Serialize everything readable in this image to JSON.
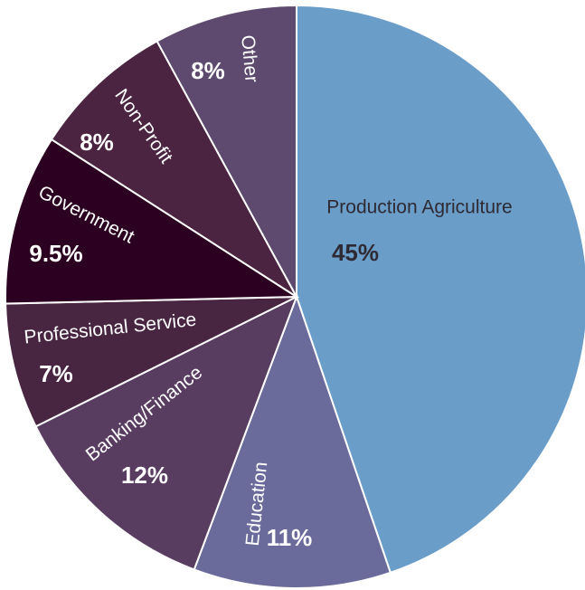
{
  "chart_data": {
    "type": "pie",
    "title": "",
    "slices": [
      {
        "label": "Production Agriculture",
        "value_label": "45%",
        "value": 45,
        "color": "#6b9dc9",
        "label_color": "#2e2a34"
      },
      {
        "label": "Education",
        "value_label": "11%",
        "value": 11,
        "color": "#6a6b9b",
        "label_color": "#ffffff"
      },
      {
        "label": "Banking/Finance",
        "value_label": "12%",
        "value": 12,
        "color": "#593d61",
        "label_color": "#ffffff"
      },
      {
        "label": "Professional Service",
        "value_label": "7%",
        "value": 7,
        "color": "#482541",
        "label_color": "#ffffff"
      },
      {
        "label": "Government",
        "value_label": "9.5%",
        "value": 9.5,
        "color": "#2b0020",
        "label_color": "#ffffff"
      },
      {
        "label": "Non-Profit",
        "value_label": "8%",
        "value": 8,
        "color": "#4a2440",
        "label_color": "#ffffff"
      },
      {
        "label": "Other",
        "value_label": "8%",
        "value": 8,
        "color": "#5d4a6e",
        "label_color": "#ffffff"
      }
    ]
  }
}
